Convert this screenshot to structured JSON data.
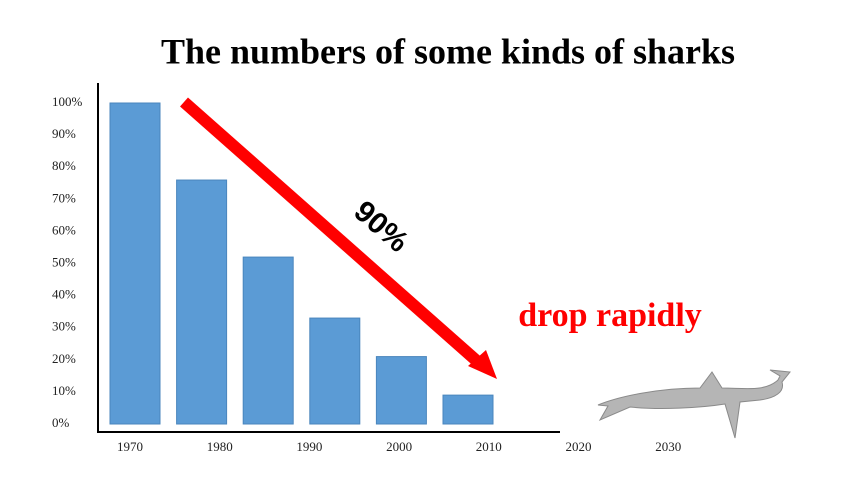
{
  "chart_data": {
    "type": "bar",
    "title": "The numbers of some kinds of sharks",
    "categories": [
      "1970",
      "1980",
      "1990",
      "2000",
      "2010",
      "2020",
      "2030"
    ],
    "values": [
      100,
      76,
      52,
      33,
      21,
      9,
      null
    ],
    "color": "#5b9bd5",
    "ylim": [
      0,
      100
    ],
    "yticks": [
      {
        "value": 0,
        "label": "0%"
      },
      {
        "value": 10,
        "label": "10%"
      },
      {
        "value": 20,
        "label": "20%"
      },
      {
        "value": 30,
        "label": "30%"
      },
      {
        "value": 40,
        "label": "40%"
      },
      {
        "value": 50,
        "label": "50%"
      },
      {
        "value": 60,
        "label": "60%"
      },
      {
        "value": 70,
        "label": "70%"
      },
      {
        "value": 80,
        "label": "80%"
      },
      {
        "value": 90,
        "label": "90%"
      },
      {
        "value": 100,
        "label": "100%"
      }
    ],
    "annotations": [
      "90%",
      "drop rapidly"
    ]
  }
}
